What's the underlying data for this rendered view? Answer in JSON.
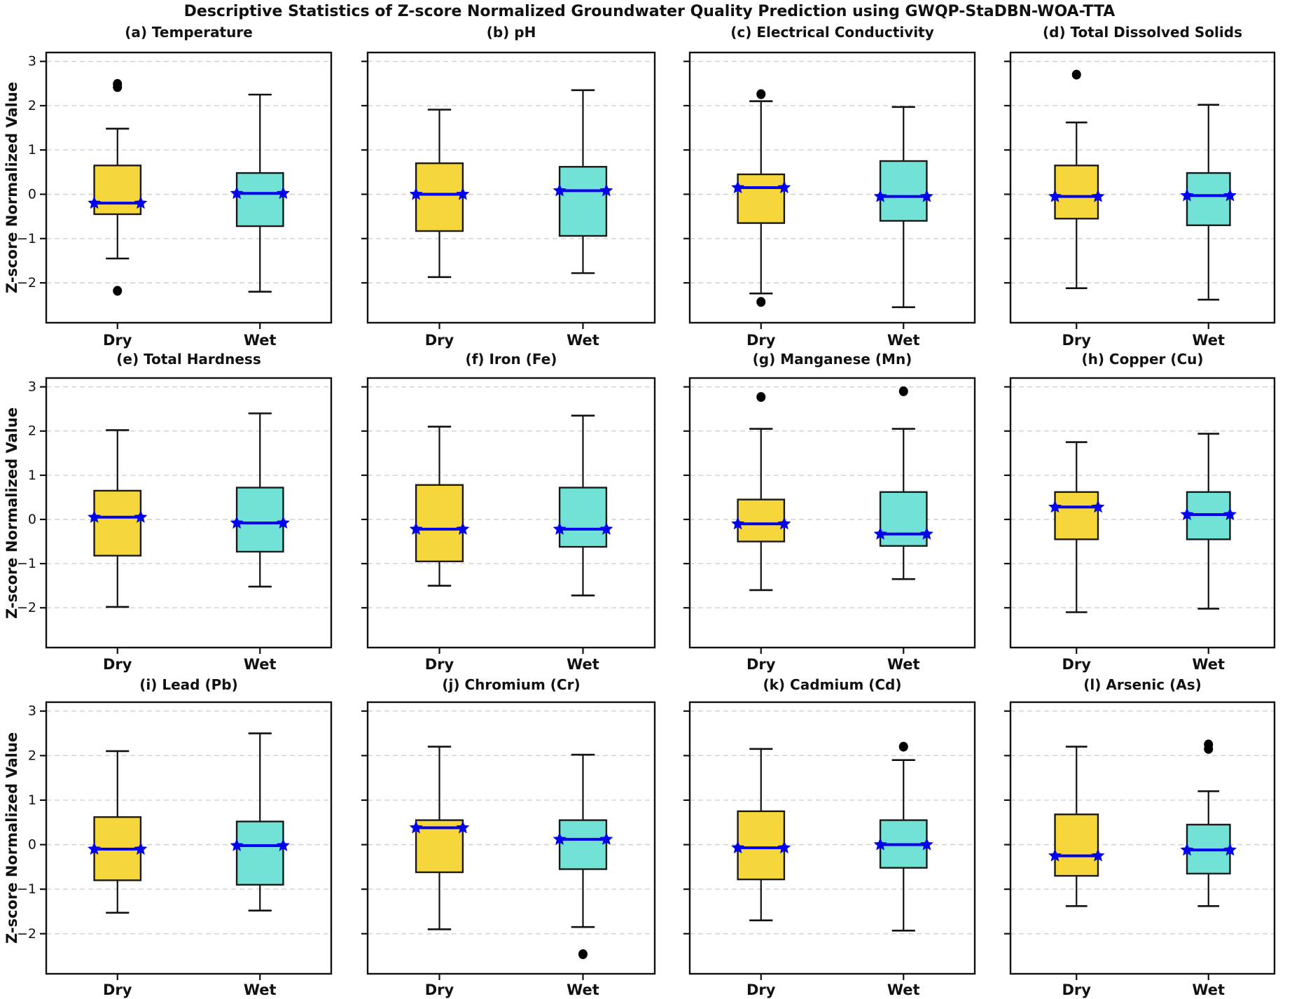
{
  "title": "Descriptive Statistics of Z-score Normalized Groundwater Quality Prediction using GWQP-StaDBN-WOA-TTA",
  "ylabel": "Z-score Normalized Value",
  "categories": [
    "Dry",
    "Wet"
  ],
  "yticks": [
    3,
    2,
    1,
    0,
    -1,
    -2
  ],
  "ylim": [
    -2.9,
    3.2
  ],
  "colors": {
    "dry_fill": "#F5D73C",
    "wet_fill": "#72E2D6",
    "box_edge": "#1a1a1a",
    "median": "#0000F0",
    "mean_star": "#0000F0",
    "whisker": "#111111",
    "outlier": "#000000",
    "grid": "#d0d0d0",
    "spine": "#111111"
  },
  "chart_data": [
    {
      "type": "box",
      "title": "(a) Temperature",
      "series": [
        {
          "name": "Dry",
          "whisker_low": -1.45,
          "q1": -0.45,
          "median": -0.2,
          "q3": 0.65,
          "whisker_high": 1.48,
          "outliers": [
            2.42,
            2.49,
            -2.18
          ]
        },
        {
          "name": "Wet",
          "whisker_low": -2.2,
          "q1": -0.72,
          "median": 0.02,
          "q3": 0.48,
          "whisker_high": 2.25,
          "outliers": []
        }
      ]
    },
    {
      "type": "box",
      "title": "(b) pH",
      "series": [
        {
          "name": "Dry",
          "whisker_low": -1.87,
          "q1": -0.83,
          "median": 0.0,
          "q3": 0.7,
          "whisker_high": 1.91,
          "outliers": []
        },
        {
          "name": "Wet",
          "whisker_low": -1.78,
          "q1": -0.94,
          "median": 0.08,
          "q3": 0.62,
          "whisker_high": 2.35,
          "outliers": []
        }
      ]
    },
    {
      "type": "box",
      "title": "(c) Electrical Conductivity",
      "series": [
        {
          "name": "Dry",
          "whisker_low": -2.24,
          "q1": -0.65,
          "median": 0.15,
          "q3": 0.45,
          "whisker_high": 2.1,
          "outliers": [
            2.26,
            -2.43
          ]
        },
        {
          "name": "Wet",
          "whisker_low": -2.55,
          "q1": -0.6,
          "median": -0.05,
          "q3": 0.75,
          "whisker_high": 1.97,
          "outliers": []
        }
      ]
    },
    {
      "type": "box",
      "title": "(d) Total Dissolved Solids",
      "series": [
        {
          "name": "Dry",
          "whisker_low": -2.12,
          "q1": -0.55,
          "median": -0.05,
          "q3": 0.65,
          "whisker_high": 1.62,
          "outliers": [
            2.7
          ]
        },
        {
          "name": "Wet",
          "whisker_low": -2.38,
          "q1": -0.7,
          "median": -0.03,
          "q3": 0.48,
          "whisker_high": 2.02,
          "outliers": []
        }
      ]
    },
    {
      "type": "box",
      "title": "(e) Total Hardness",
      "series": [
        {
          "name": "Dry",
          "whisker_low": -1.98,
          "q1": -0.82,
          "median": 0.05,
          "q3": 0.65,
          "whisker_high": 2.02,
          "outliers": []
        },
        {
          "name": "Wet",
          "whisker_low": -1.52,
          "q1": -0.73,
          "median": -0.08,
          "q3": 0.72,
          "whisker_high": 2.4,
          "outliers": []
        }
      ]
    },
    {
      "type": "box",
      "title": "(f) Iron (Fe)",
      "series": [
        {
          "name": "Dry",
          "whisker_low": -1.5,
          "q1": -0.95,
          "median": -0.22,
          "q3": 0.78,
          "whisker_high": 2.1,
          "outliers": []
        },
        {
          "name": "Wet",
          "whisker_low": -1.72,
          "q1": -0.62,
          "median": -0.22,
          "q3": 0.72,
          "whisker_high": 2.35,
          "outliers": []
        }
      ]
    },
    {
      "type": "box",
      "title": "(g) Manganese (Mn)",
      "series": [
        {
          "name": "Dry",
          "whisker_low": -1.6,
          "q1": -0.5,
          "median": -0.1,
          "q3": 0.45,
          "whisker_high": 2.05,
          "outliers": [
            2.77
          ]
        },
        {
          "name": "Wet",
          "whisker_low": -1.35,
          "q1": -0.6,
          "median": -0.33,
          "q3": 0.62,
          "whisker_high": 2.05,
          "outliers": [
            2.9
          ]
        }
      ]
    },
    {
      "type": "box",
      "title": "(h) Copper (Cu)",
      "series": [
        {
          "name": "Dry",
          "whisker_low": -2.1,
          "q1": -0.45,
          "median": 0.28,
          "q3": 0.62,
          "whisker_high": 1.75,
          "outliers": []
        },
        {
          "name": "Wet",
          "whisker_low": -2.02,
          "q1": -0.45,
          "median": 0.11,
          "q3": 0.62,
          "whisker_high": 1.94,
          "outliers": []
        }
      ]
    },
    {
      "type": "box",
      "title": "(i) Lead (Pb)",
      "series": [
        {
          "name": "Dry",
          "whisker_low": -1.53,
          "q1": -0.8,
          "median": -0.1,
          "q3": 0.62,
          "whisker_high": 2.1,
          "outliers": []
        },
        {
          "name": "Wet",
          "whisker_low": -1.48,
          "q1": -0.9,
          "median": -0.02,
          "q3": 0.52,
          "whisker_high": 2.5,
          "outliers": []
        }
      ]
    },
    {
      "type": "box",
      "title": "(j) Chromium (Cr)",
      "series": [
        {
          "name": "Dry",
          "whisker_low": -1.9,
          "q1": -0.62,
          "median": 0.38,
          "q3": 0.55,
          "whisker_high": 2.2,
          "outliers": []
        },
        {
          "name": "Wet",
          "whisker_low": -1.85,
          "q1": -0.55,
          "median": 0.12,
          "q3": 0.55,
          "whisker_high": 2.02,
          "outliers": [
            -2.46
          ]
        }
      ]
    },
    {
      "type": "box",
      "title": "(k) Cadmium (Cd)",
      "series": [
        {
          "name": "Dry",
          "whisker_low": -1.7,
          "q1": -0.78,
          "median": -0.07,
          "q3": 0.75,
          "whisker_high": 2.15,
          "outliers": []
        },
        {
          "name": "Wet",
          "whisker_low": -1.93,
          "q1": -0.52,
          "median": 0.0,
          "q3": 0.55,
          "whisker_high": 1.9,
          "outliers": [
            2.2
          ]
        }
      ]
    },
    {
      "type": "box",
      "title": "(l) Arsenic (As)",
      "series": [
        {
          "name": "Dry",
          "whisker_low": -1.38,
          "q1": -0.7,
          "median": -0.25,
          "q3": 0.68,
          "whisker_high": 2.2,
          "outliers": []
        },
        {
          "name": "Wet",
          "whisker_low": -1.38,
          "q1": -0.65,
          "median": -0.12,
          "q3": 0.45,
          "whisker_high": 1.2,
          "outliers": [
            2.15,
            2.25
          ]
        }
      ]
    }
  ]
}
